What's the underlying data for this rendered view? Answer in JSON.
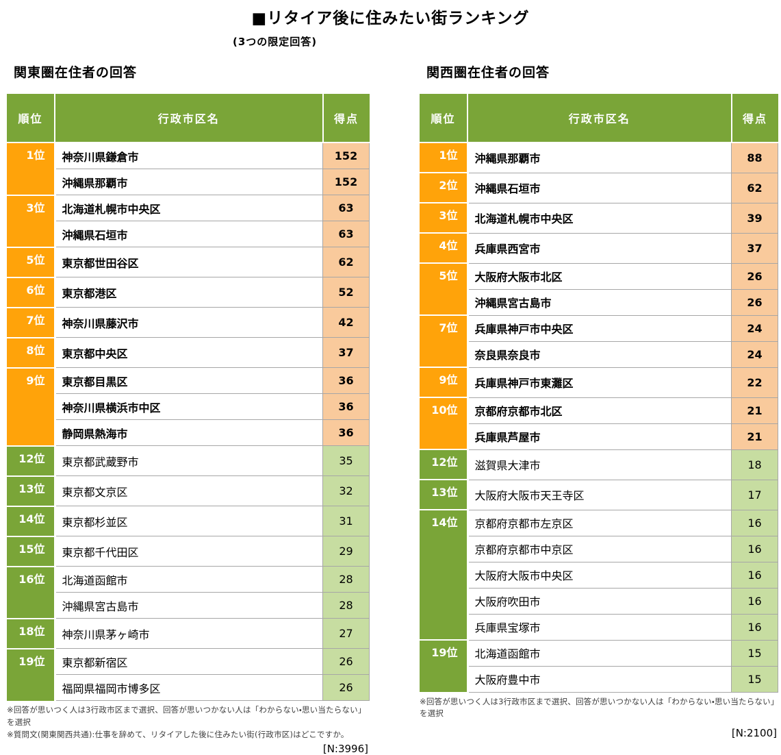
{
  "title": "■リタイア後に住みたい街ランキング",
  "subtitle": "(3つの限定回答)",
  "columns": {
    "rank": "順位",
    "name": "行政市区名",
    "score": "得点"
  },
  "colors": {
    "header_green": "#7AA538",
    "rank_orange": "#FFA30A",
    "score_orange_bg": "#F9CA9C",
    "rank_green": "#7AA538",
    "score_green_bg": "#C7DDA1",
    "grid_gray": "#A6A6A6"
  },
  "tables": [
    {
      "heading": "関東圏在住者の回答",
      "n_label": "[N:3996]",
      "notes": [
        "※回答が思いつく人は3行政市区まで選択、回答が思いつかない人は「わからない・思い当たらない」を選択",
        "※質問文(関東関西共通):仕事を辞めて、リタイアした後に住みたい街(行政市区)はどこですか。"
      ],
      "rows": [
        {
          "rank": "1位",
          "span": 2,
          "name": "神奈川県鎌倉市",
          "score": 152,
          "tier": "top"
        },
        {
          "name": "沖縄県那覇市",
          "score": 152,
          "tier": "top"
        },
        {
          "rank": "3位",
          "span": 2,
          "name": "北海道札幌市中央区",
          "score": 63,
          "tier": "top"
        },
        {
          "name": "沖縄県石垣市",
          "score": 63,
          "tier": "top"
        },
        {
          "rank": "5位",
          "span": 1,
          "name": "東京都世田谷区",
          "score": 62,
          "tier": "top"
        },
        {
          "rank": "6位",
          "span": 1,
          "name": "東京都港区",
          "score": 52,
          "tier": "top"
        },
        {
          "rank": "7位",
          "span": 1,
          "name": "神奈川県藤沢市",
          "score": 42,
          "tier": "top"
        },
        {
          "rank": "8位",
          "span": 1,
          "name": "東京都中央区",
          "score": 37,
          "tier": "top"
        },
        {
          "rank": "9位",
          "span": 3,
          "name": "東京都目黒区",
          "score": 36,
          "tier": "top"
        },
        {
          "name": "神奈川県横浜市中区",
          "score": 36,
          "tier": "top"
        },
        {
          "name": "静岡県熱海市",
          "score": 36,
          "tier": "top"
        },
        {
          "rank": "12位",
          "span": 1,
          "name": "東京都武蔵野市",
          "score": 35,
          "tier": "bottom"
        },
        {
          "rank": "13位",
          "span": 1,
          "name": "東京都文京区",
          "score": 32,
          "tier": "bottom"
        },
        {
          "rank": "14位",
          "span": 1,
          "name": "東京都杉並区",
          "score": 31,
          "tier": "bottom"
        },
        {
          "rank": "15位",
          "span": 1,
          "name": "東京都千代田区",
          "score": 29,
          "tier": "bottom"
        },
        {
          "rank": "16位",
          "span": 2,
          "name": "北海道函館市",
          "score": 28,
          "tier": "bottom"
        },
        {
          "name": "沖縄県宮古島市",
          "score": 28,
          "tier": "bottom"
        },
        {
          "rank": "18位",
          "span": 1,
          "name": "神奈川県茅ヶ崎市",
          "score": 27,
          "tier": "bottom"
        },
        {
          "rank": "19位",
          "span": 2,
          "name": "東京都新宿区",
          "score": 26,
          "tier": "bottom"
        },
        {
          "name": "福岡県福岡市博多区",
          "score": 26,
          "tier": "bottom"
        }
      ]
    },
    {
      "heading": "関西圏在住者の回答",
      "n_label": "[N:2100]",
      "notes": [
        "※回答が思いつく人は3行政市区まで選択、回答が思いつかない人は「わからない・思い当たらない」を選択"
      ],
      "rows": [
        {
          "rank": "1位",
          "span": 1,
          "name": "沖縄県那覇市",
          "score": 88,
          "tier": "top"
        },
        {
          "rank": "2位",
          "span": 1,
          "name": "沖縄県石垣市",
          "score": 62,
          "tier": "top"
        },
        {
          "rank": "3位",
          "span": 1,
          "name": "北海道札幌市中央区",
          "score": 39,
          "tier": "top"
        },
        {
          "rank": "4位",
          "span": 1,
          "name": "兵庫県西宮市",
          "score": 37,
          "tier": "top"
        },
        {
          "rank": "5位",
          "span": 2,
          "name": "大阪府大阪市北区",
          "score": 26,
          "tier": "top"
        },
        {
          "name": "沖縄県宮古島市",
          "score": 26,
          "tier": "top"
        },
        {
          "rank": "7位",
          "span": 2,
          "name": "兵庫県神戸市中央区",
          "score": 24,
          "tier": "top"
        },
        {
          "name": "奈良県奈良市",
          "score": 24,
          "tier": "top"
        },
        {
          "rank": "9位",
          "span": 1,
          "name": "兵庫県神戸市東灘区",
          "score": 22,
          "tier": "top"
        },
        {
          "rank": "10位",
          "span": 2,
          "name": "京都府京都市北区",
          "score": 21,
          "tier": "top"
        },
        {
          "name": "兵庫県芦屋市",
          "score": 21,
          "tier": "top"
        },
        {
          "rank": "12位",
          "span": 1,
          "name": "滋賀県大津市",
          "score": 18,
          "tier": "bottom"
        },
        {
          "rank": "13位",
          "span": 1,
          "name": "大阪府大阪市天王寺区",
          "score": 17,
          "tier": "bottom"
        },
        {
          "rank": "14位",
          "span": 5,
          "name": "京都府京都市左京区",
          "score": 16,
          "tier": "bottom"
        },
        {
          "name": "京都府京都市中京区",
          "score": 16,
          "tier": "bottom"
        },
        {
          "name": "大阪府大阪市中央区",
          "score": 16,
          "tier": "bottom"
        },
        {
          "name": "大阪府吹田市",
          "score": 16,
          "tier": "bottom"
        },
        {
          "name": "兵庫県宝塚市",
          "score": 16,
          "tier": "bottom"
        },
        {
          "rank": "19位",
          "span": 2,
          "name": "北海道函館市",
          "score": 15,
          "tier": "bottom"
        },
        {
          "name": "大阪府豊中市",
          "score": 15,
          "tier": "bottom"
        }
      ]
    }
  ]
}
